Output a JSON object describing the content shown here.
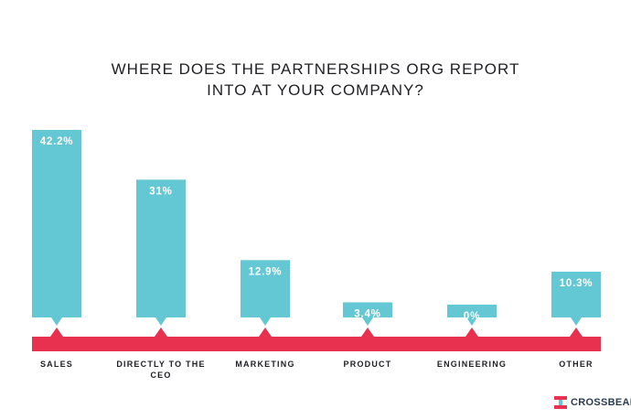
{
  "chart_data": {
    "type": "bar",
    "title_lines": [
      "WHERE DOES THE PARTNERSHIPS ORG REPORT",
      "INTO AT YOUR COMPANY?"
    ],
    "categories": [
      "SALES",
      "DIRECTLY TO THE CEO",
      "MARKETING",
      "PRODUCT",
      "ENGINEERING",
      "OTHER"
    ],
    "category_label_lines": [
      [
        "SALES"
      ],
      [
        "DIRECTLY TO THE",
        "CEO"
      ],
      [
        "MARKETING"
      ],
      [
        "PRODUCT"
      ],
      [
        "ENGINEERING"
      ],
      [
        "OTHER"
      ]
    ],
    "values": [
      42.2,
      31,
      12.9,
      3.4,
      0,
      10.3
    ],
    "value_labels": [
      "42.2%",
      "31%",
      "12.9%",
      "3.4%",
      "0%",
      "10.3%"
    ],
    "unit": "%",
    "ylim": [
      0,
      42.2
    ],
    "bar_color": "#63c8d4",
    "axis_color": "#e8304f",
    "label_color": "#1f1f24"
  },
  "brand": {
    "name": "CROSSBEAM",
    "colors": {
      "red": "#e8304f",
      "teal": "#63c8d4",
      "navy": "#2b3b54"
    }
  }
}
